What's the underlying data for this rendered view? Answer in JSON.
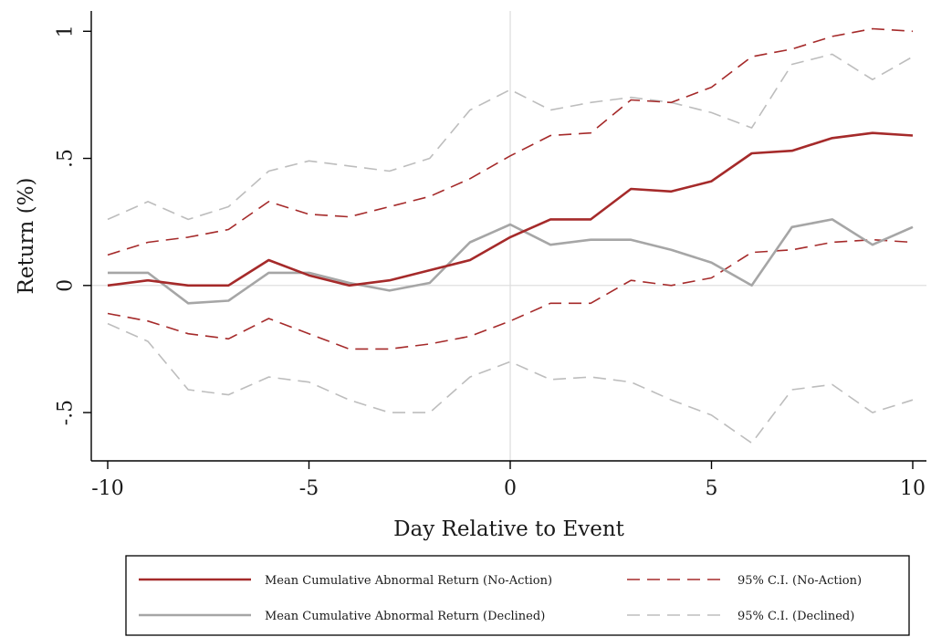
{
  "chart_data": {
    "type": "line",
    "title": "",
    "xlabel": "Day Relative to Event",
    "ylabel": "Return (%)",
    "xlim": [
      -10,
      10
    ],
    "ylim": [
      -0.69,
      1.08
    ],
    "x_ticks": [
      -10,
      -5,
      0,
      5,
      10
    ],
    "x_tick_labels": [
      "-10",
      "-5",
      "0",
      "5",
      "10"
    ],
    "y_ticks": [
      -0.5,
      0,
      0.5,
      1
    ],
    "y_tick_labels": [
      "-.5",
      "0",
      ".5",
      "1"
    ],
    "reference_lines": {
      "horizontal": 0,
      "vertical": 0
    },
    "grid": false,
    "legend_position": "bottom",
    "x": [
      -10,
      -9,
      -8,
      -7,
      -6,
      -5,
      -4,
      -3,
      -2,
      -1,
      0,
      1,
      2,
      3,
      4,
      5,
      6,
      7,
      8,
      9,
      10
    ],
    "series": [
      {
        "name": "Mean Cumulative Abnormal Return (No-Action)",
        "color": "#a52a2a",
        "style": "solid",
        "values": [
          0.0,
          0.02,
          0.0,
          0.0,
          0.1,
          0.04,
          0.0,
          0.02,
          0.06,
          0.1,
          0.19,
          0.26,
          0.26,
          0.38,
          0.37,
          0.41,
          0.52,
          0.53,
          0.58,
          0.6,
          0.59
        ]
      },
      {
        "name": "95% C.I. (No-Action)",
        "color": "#a52a2a",
        "style": "dashed",
        "values": [
          0.12,
          0.17,
          0.19,
          0.22,
          0.33,
          0.28,
          0.27,
          0.31,
          0.35,
          0.42,
          0.51,
          0.59,
          0.6,
          0.73,
          0.72,
          0.78,
          0.9,
          0.93,
          0.98,
          1.01,
          1.0
        ]
      },
      {
        "name": "",
        "color": "#a52a2a",
        "style": "dashed",
        "values": [
          -0.11,
          -0.14,
          -0.19,
          -0.21,
          -0.13,
          -0.19,
          -0.25,
          -0.25,
          -0.23,
          -0.2,
          -0.14,
          -0.07,
          -0.07,
          0.02,
          0.0,
          0.03,
          0.13,
          0.14,
          0.17,
          0.18,
          0.17
        ]
      },
      {
        "name": "Mean Cumulative Abnormal Return (Declined)",
        "color": "#a6a6a6",
        "style": "solid",
        "values": [
          0.05,
          0.05,
          -0.07,
          -0.06,
          0.05,
          0.05,
          0.01,
          -0.02,
          0.01,
          0.17,
          0.24,
          0.16,
          0.18,
          0.18,
          0.14,
          0.09,
          0.0,
          0.23,
          0.26,
          0.16,
          0.23
        ]
      },
      {
        "name": "95% C.I. (Declined)",
        "color": "#bdbdbd",
        "style": "dashed",
        "values": [
          0.26,
          0.33,
          0.26,
          0.31,
          0.45,
          0.49,
          0.47,
          0.45,
          0.5,
          0.69,
          0.77,
          0.69,
          0.72,
          0.74,
          0.72,
          0.68,
          0.62,
          0.87,
          0.91,
          0.81,
          0.9
        ]
      },
      {
        "name": "",
        "color": "#bdbdbd",
        "style": "dashed",
        "values": [
          -0.15,
          -0.22,
          -0.41,
          -0.43,
          -0.36,
          -0.38,
          -0.45,
          -0.5,
          -0.5,
          -0.36,
          -0.3,
          -0.37,
          -0.36,
          -0.38,
          -0.45,
          -0.51,
          -0.62,
          -0.41,
          -0.39,
          -0.5,
          -0.45
        ]
      }
    ],
    "legend": [
      {
        "label": "Mean Cumulative Abnormal Return (No-Action)",
        "color": "#a52a2a",
        "style": "solid"
      },
      {
        "label": "95% C.I. (No-Action)",
        "color": "#a52a2a",
        "style": "dashed"
      },
      {
        "label": "Mean Cumulative Abnormal Return (Declined)",
        "color": "#a6a6a6",
        "style": "solid"
      },
      {
        "label": "95% C.I. (Declined)",
        "color": "#bdbdbd",
        "style": "dashed"
      }
    ]
  }
}
